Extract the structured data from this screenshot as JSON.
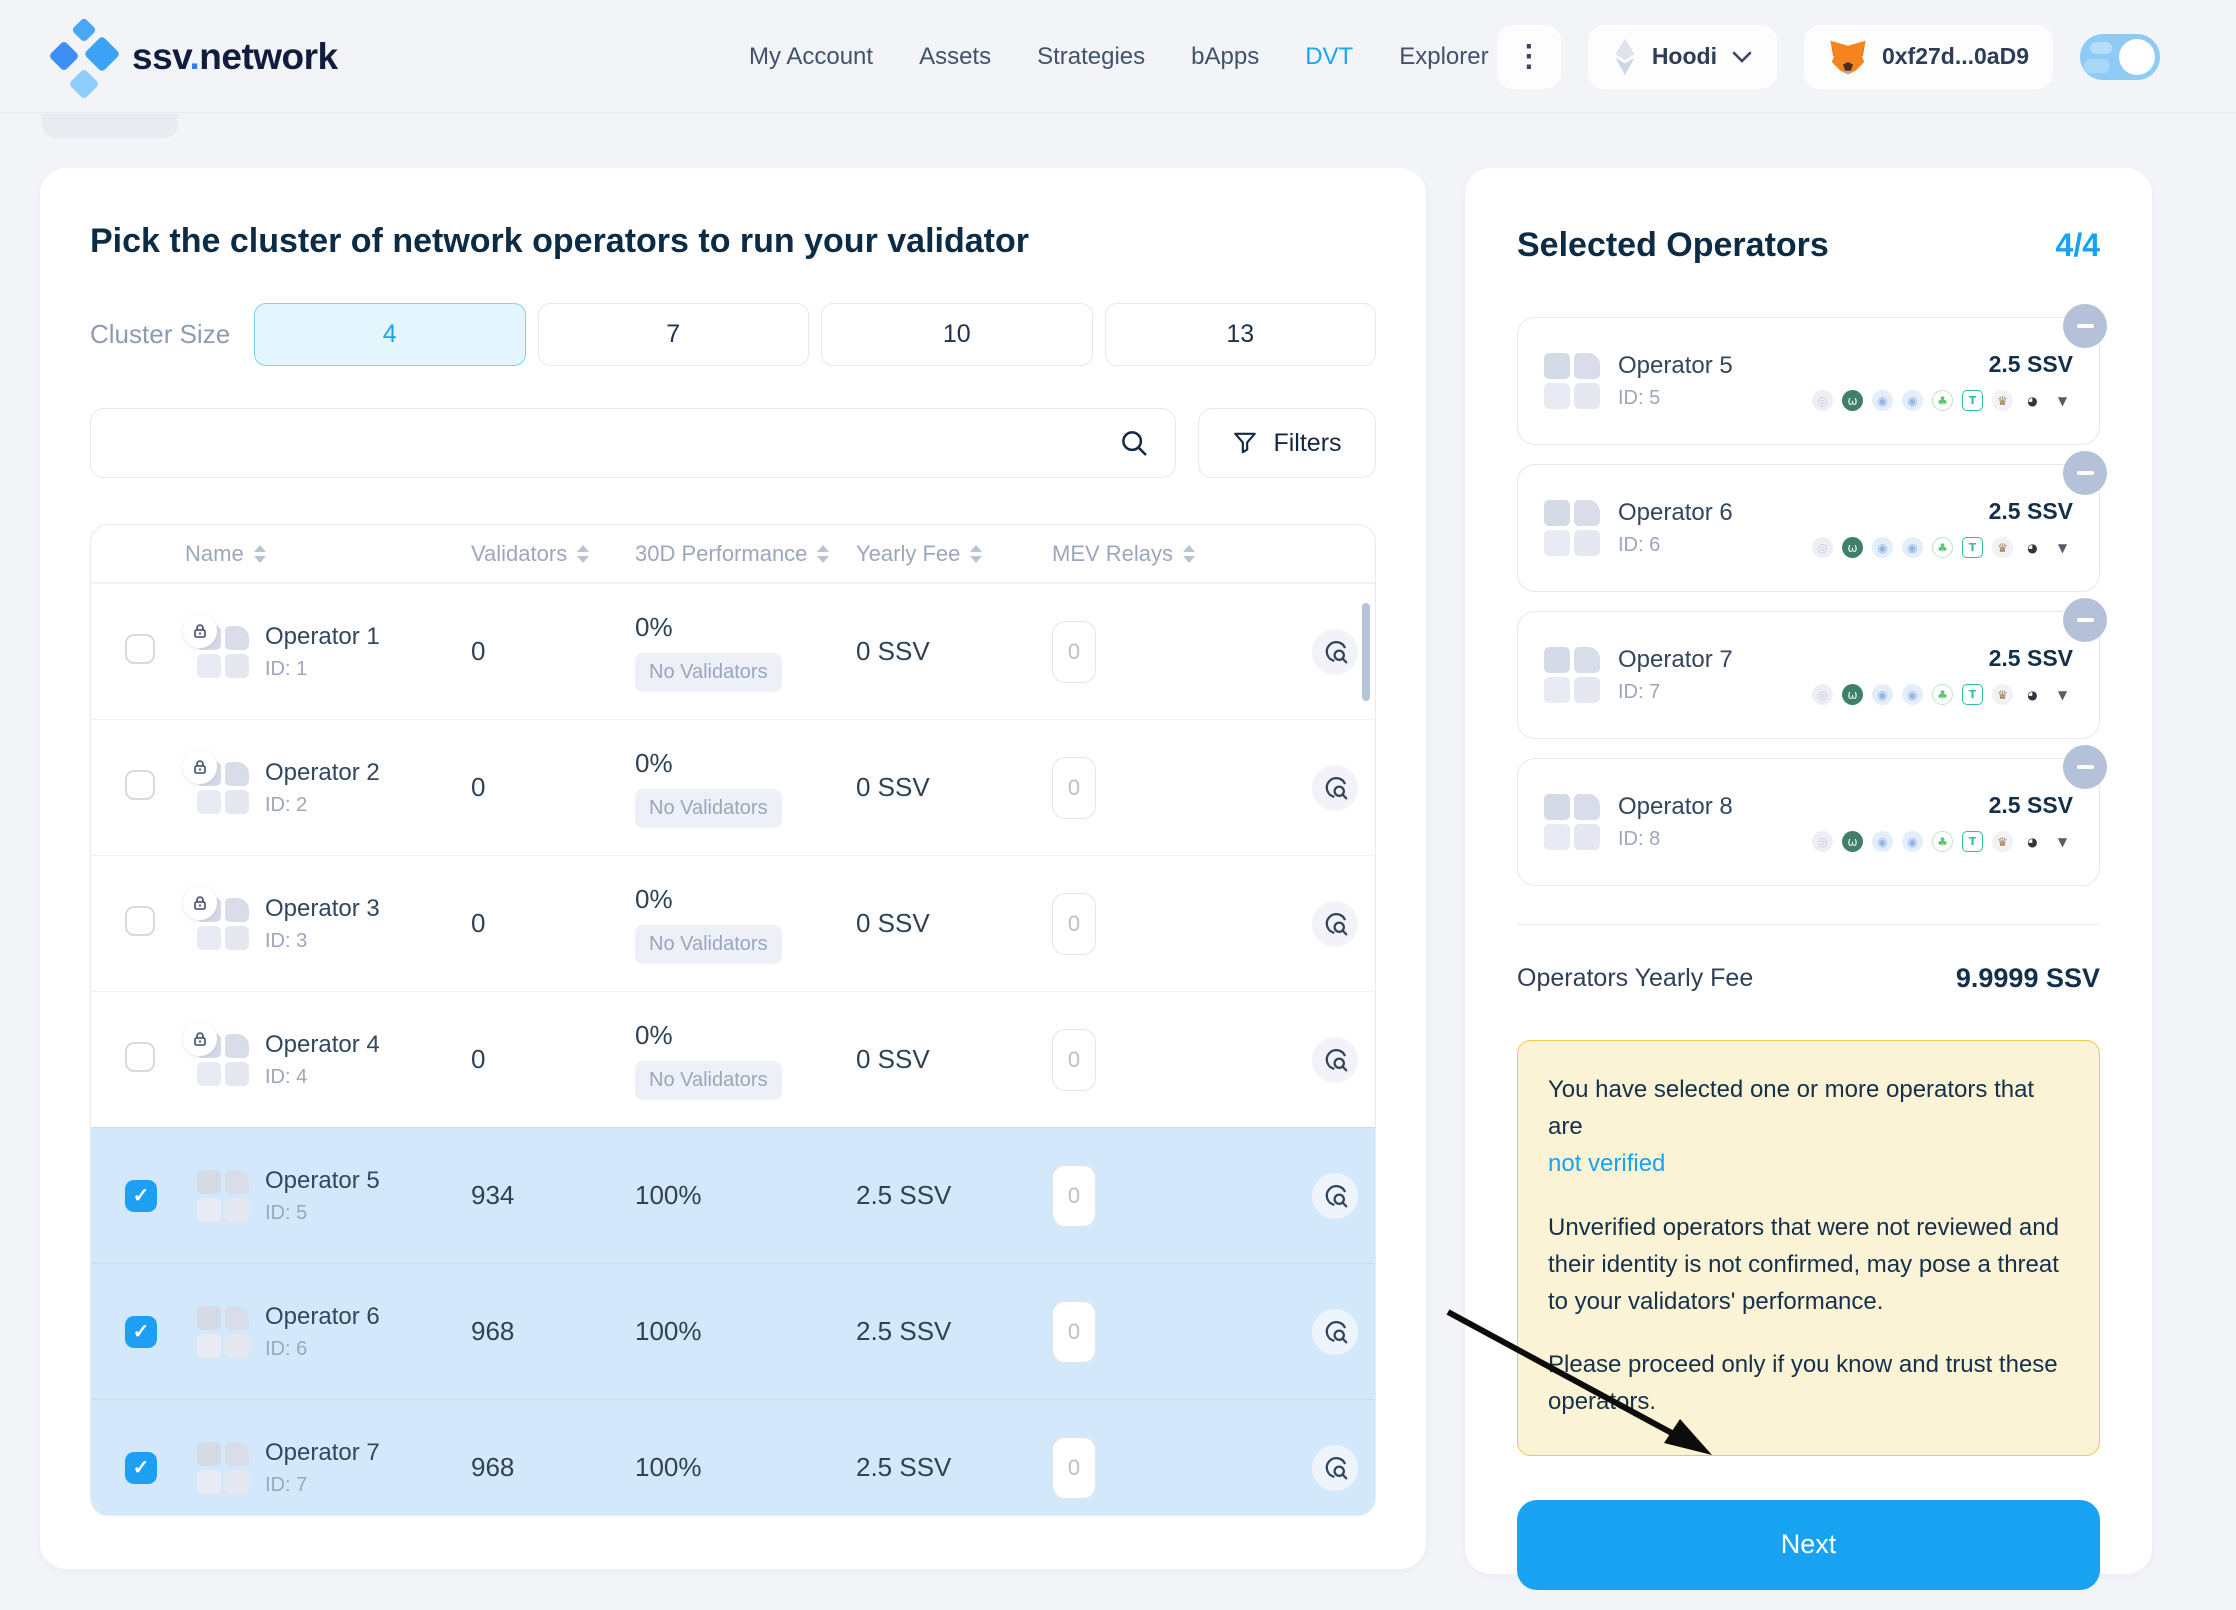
{
  "navbar": {
    "brand": {
      "left": "ssv",
      "dot": ".",
      "right": "network"
    },
    "links": [
      {
        "label": "My Account"
      },
      {
        "label": "Assets"
      },
      {
        "label": "Strategies"
      },
      {
        "label": "bApps"
      },
      {
        "label": "DVT"
      },
      {
        "label": "Explorer"
      }
    ],
    "menu_dots": "⋮",
    "network_label": "Hoodi",
    "wallet_address": "0xf27d...0aD9"
  },
  "main": {
    "title": "Pick the cluster of network operators to run your validator",
    "cluster_size": {
      "label": "Cluster Size",
      "options": [
        "4",
        "7",
        "10",
        "13"
      ],
      "selected": "4"
    },
    "filters_label": "Filters",
    "table": {
      "columns": [
        "Name",
        "Validators",
        "30D Performance",
        "Yearly Fee",
        "MEV Relays"
      ],
      "rows": [
        {
          "name": "Operator 1",
          "id": "ID: 1",
          "validators": "0",
          "performance": "0%",
          "badge": "No Validators",
          "fee": "0 SSV",
          "mev": "0",
          "checked": false
        },
        {
          "name": "Operator 2",
          "id": "ID: 2",
          "validators": "0",
          "performance": "0%",
          "badge": "No Validators",
          "fee": "0 SSV",
          "mev": "0",
          "checked": false
        },
        {
          "name": "Operator 3",
          "id": "ID: 3",
          "validators": "0",
          "performance": "0%",
          "badge": "No Validators",
          "fee": "0 SSV",
          "mev": "0",
          "checked": false
        },
        {
          "name": "Operator 4",
          "id": "ID: 4",
          "validators": "0",
          "performance": "0%",
          "badge": "No Validators",
          "fee": "0 SSV",
          "mev": "0",
          "checked": false
        },
        {
          "name": "Operator 5",
          "id": "ID: 5",
          "validators": "934",
          "performance": "100%",
          "fee": "2.5 SSV",
          "mev": "0",
          "checked": true
        },
        {
          "name": "Operator 6",
          "id": "ID: 6",
          "validators": "968",
          "performance": "100%",
          "fee": "2.5 SSV",
          "mev": "0",
          "checked": true
        },
        {
          "name": "Operator 7",
          "id": "ID: 7",
          "validators": "968",
          "performance": "100%",
          "fee": "2.5 SSV",
          "mev": "0",
          "checked": true
        }
      ]
    }
  },
  "sidebar": {
    "title": "Selected Operators",
    "count": "4/4",
    "operators": [
      {
        "name": "Operator 5",
        "id": "ID: 5",
        "fee": "2.5 SSV"
      },
      {
        "name": "Operator 6",
        "id": "ID: 6",
        "fee": "2.5 SSV"
      },
      {
        "name": "Operator 7",
        "id": "ID: 7",
        "fee": "2.5 SSV"
      },
      {
        "name": "Operator 8",
        "id": "ID: 8",
        "fee": "2.5 SSV"
      }
    ],
    "relay_icons": [
      {
        "name": "mev-relay-1",
        "glyph": "◎",
        "bg": "#edeff4",
        "fg": "#c7cdd9"
      },
      {
        "name": "mev-relay-2",
        "glyph": "ω",
        "bg": "#40806a",
        "fg": "#eaf5ee"
      },
      {
        "name": "mev-relay-3",
        "glyph": "◉",
        "bg": "#e4edfa",
        "fg": "#93b7e6"
      },
      {
        "name": "mev-relay-4",
        "glyph": "◉",
        "bg": "#e4edfa",
        "fg": "#93b7e6"
      },
      {
        "name": "mev-relay-5",
        "glyph": "♣",
        "bg": "#ffffff",
        "fg": "#5fc56c",
        "border": "#bfe5c4"
      },
      {
        "name": "mev-relay-6",
        "glyph": "T",
        "bg": "#ffffff",
        "fg": "#2fbfa0",
        "border": "#2fbfa0",
        "square": true
      },
      {
        "name": "mev-relay-7",
        "glyph": "♛",
        "bg": "#f0f2f6",
        "fg": "#a8814f"
      },
      {
        "name": "mev-relay-8",
        "glyph": "◕",
        "bg": "#ffffff",
        "fg": "#30353f"
      },
      {
        "name": "mev-relay-9",
        "glyph": "▼",
        "bg": "transparent",
        "fg": "#555d6a"
      }
    ],
    "yearly_fee_label": "Operators Yearly Fee",
    "yearly_fee_value": "9.9999 SSV",
    "warning": {
      "line1": "You have selected one or more operators that are",
      "link": "not verified",
      "para1": "Unverified operators that were not reviewed and their identity is not confirmed, may pose a threat to your validators' performance.",
      "para2": "Please proceed only if you know and trust these operators."
    },
    "next_label": "Next"
  },
  "colors": {
    "accent_blue": "#17a3f5",
    "selected_row": "#d3e9fb",
    "warning_bg": "#fbf3d6",
    "warning_border": "#edc84a",
    "next_button": "#18a2f2"
  }
}
